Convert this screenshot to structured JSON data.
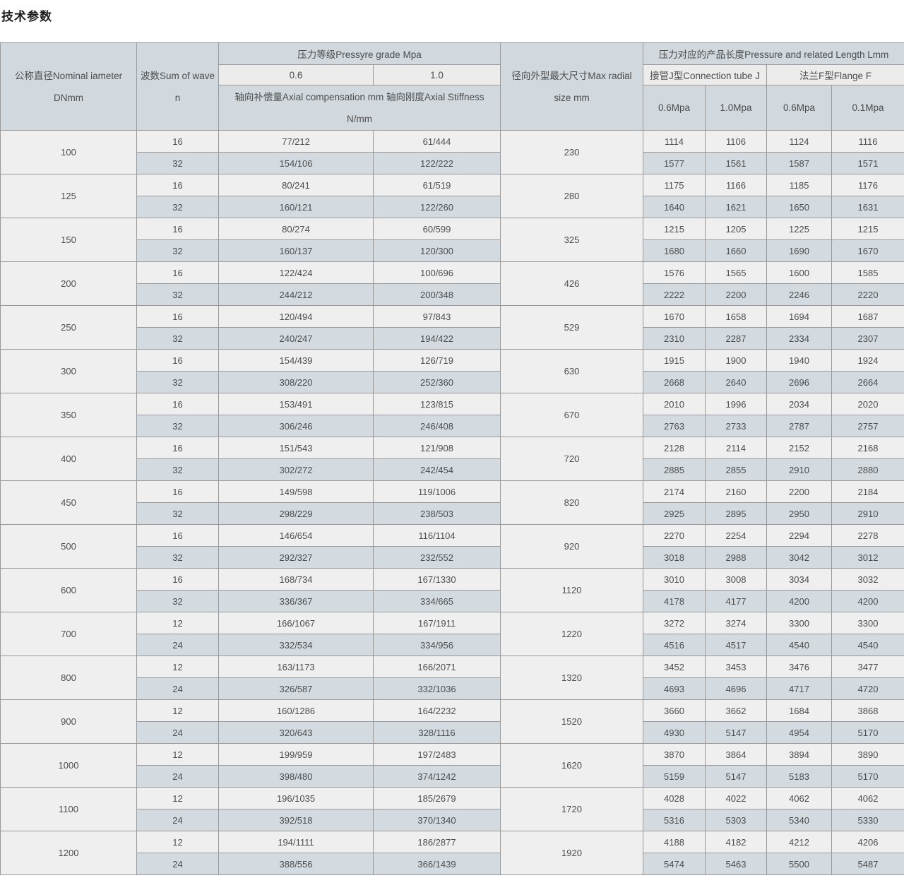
{
  "title": "技术参数",
  "colors": {
    "header_bg": "#d1d8de",
    "subheader_bg": "#ececec",
    "row_light": "#efefef",
    "row_blue": "#d3dbe1",
    "border": "#999999",
    "text": "#4d4d4d"
  },
  "table": {
    "header": {
      "diameter_line1": "公称直径Nominal iameter",
      "diameter_line2": "DNmm",
      "waves_line1": "波数Sum of wave",
      "waves_line2": "n",
      "pressure_group": "压力等级Pressyre grade Mpa",
      "pressure_06": "0.6",
      "pressure_10": "1.0",
      "axial_line1": "轴向补偿量Axial compensation mm 轴向刚度Axial Stiffness",
      "axial_line2": "N/mm",
      "radial_line1": "径向外型最大尺寸Max radial",
      "radial_line2": "size mm",
      "length_group": "压力对应的产品长度Pressure and related Length Lmm",
      "connection_tube": "接管J型Connection tube J",
      "flange": "法兰F型Flange F",
      "len_cols": [
        "0.6Mpa",
        "1.0Mpa",
        "0.6Mpa",
        "0.1Mpa"
      ]
    },
    "rows": [
      {
        "dn": "100",
        "radial": "230",
        "sub": [
          {
            "waves": "16",
            "comp06": "77/212",
            "comp10": "61/444",
            "len": [
              "1114",
              "1106",
              "1124",
              "1116"
            ]
          },
          {
            "waves": "32",
            "comp06": "154/106",
            "comp10": "122/222",
            "len": [
              "1577",
              "1561",
              "1587",
              "1571"
            ]
          }
        ]
      },
      {
        "dn": "125",
        "radial": "280",
        "sub": [
          {
            "waves": "16",
            "comp06": "80/241",
            "comp10": "61/519",
            "len": [
              "1175",
              "1166",
              "1185",
              "1176"
            ]
          },
          {
            "waves": "32",
            "comp06": "160/121",
            "comp10": "122/260",
            "len": [
              "1640",
              "1621",
              "1650",
              "1631"
            ]
          }
        ]
      },
      {
        "dn": "150",
        "radial": "325",
        "sub": [
          {
            "waves": "16",
            "comp06": "80/274",
            "comp10": "60/599",
            "len": [
              "1215",
              "1205",
              "1225",
              "1215"
            ]
          },
          {
            "waves": "32",
            "comp06": "160/137",
            "comp10": "120/300",
            "len": [
              "1680",
              "1660",
              "1690",
              "1670"
            ]
          }
        ]
      },
      {
        "dn": "200",
        "radial": "426",
        "sub": [
          {
            "waves": "16",
            "comp06": "122/424",
            "comp10": "100/696",
            "len": [
              "1576",
              "1565",
              "1600",
              "1585"
            ]
          },
          {
            "waves": "32",
            "comp06": "244/212",
            "comp10": "200/348",
            "len": [
              "2222",
              "2200",
              "2246",
              "2220"
            ]
          }
        ]
      },
      {
        "dn": "250",
        "radial": "529",
        "sub": [
          {
            "waves": "16",
            "comp06": "120/494",
            "comp10": "97/843",
            "len": [
              "1670",
              "1658",
              "1694",
              "1687"
            ]
          },
          {
            "waves": "32",
            "comp06": "240/247",
            "comp10": "194/422",
            "len": [
              "2310",
              "2287",
              "2334",
              "2307"
            ]
          }
        ]
      },
      {
        "dn": "300",
        "radial": "630",
        "sub": [
          {
            "waves": "16",
            "comp06": "154/439",
            "comp10": "126/719",
            "len": [
              "1915",
              "1900",
              "1940",
              "1924"
            ]
          },
          {
            "waves": "32",
            "comp06": "308/220",
            "comp10": "252/360",
            "len": [
              "2668",
              "2640",
              "2696",
              "2664"
            ]
          }
        ]
      },
      {
        "dn": "350",
        "radial": "670",
        "sub": [
          {
            "waves": "16",
            "comp06": "153/491",
            "comp10": "123/815",
            "len": [
              "2010",
              "1996",
              "2034",
              "2020"
            ]
          },
          {
            "waves": "32",
            "comp06": "306/246",
            "comp10": "246/408",
            "len": [
              "2763",
              "2733",
              "2787",
              "2757"
            ]
          }
        ]
      },
      {
        "dn": "400",
        "radial": "720",
        "sub": [
          {
            "waves": "16",
            "comp06": "151/543",
            "comp10": "121/908",
            "len": [
              "2128",
              "2114",
              "2152",
              "2168"
            ]
          },
          {
            "waves": "32",
            "comp06": "302/272",
            "comp10": "242/454",
            "len": [
              "2885",
              "2855",
              "2910",
              "2880"
            ]
          }
        ]
      },
      {
        "dn": "450",
        "radial": "820",
        "sub": [
          {
            "waves": "16",
            "comp06": "149/598",
            "comp10": "119/1006",
            "len": [
              "2174",
              "2160",
              "2200",
              "2184"
            ]
          },
          {
            "waves": "32",
            "comp06": "298/229",
            "comp10": "238/503",
            "len": [
              "2925",
              "2895",
              "2950",
              "2910"
            ]
          }
        ]
      },
      {
        "dn": "500",
        "radial": "920",
        "sub": [
          {
            "waves": "16",
            "comp06": "146/654",
            "comp10": "116/1104",
            "len": [
              "2270",
              "2254",
              "2294",
              "2278"
            ]
          },
          {
            "waves": "32",
            "comp06": "292/327",
            "comp10": "232/552",
            "len": [
              "3018",
              "2988",
              "3042",
              "3012"
            ]
          }
        ]
      },
      {
        "dn": "600",
        "radial": "1120",
        "sub": [
          {
            "waves": "16",
            "comp06": "168/734",
            "comp10": "167/1330",
            "len": [
              "3010",
              "3008",
              "3034",
              "3032"
            ]
          },
          {
            "waves": "32",
            "comp06": "336/367",
            "comp10": "334/665",
            "len": [
              "4178",
              "4177",
              "4200",
              "4200"
            ]
          }
        ]
      },
      {
        "dn": "700",
        "radial": "1220",
        "sub": [
          {
            "waves": "12",
            "comp06": "166/1067",
            "comp10": "167/1911",
            "len": [
              "3272",
              "3274",
              "3300",
              "3300"
            ]
          },
          {
            "waves": "24",
            "comp06": "332/534",
            "comp10": "334/956",
            "len": [
              "4516",
              "4517",
              "4540",
              "4540"
            ]
          }
        ]
      },
      {
        "dn": "800",
        "radial": "1320",
        "sub": [
          {
            "waves": "12",
            "comp06": "163/1173",
            "comp10": "166/2071",
            "len": [
              "3452",
              "3453",
              "3476",
              "3477"
            ]
          },
          {
            "waves": "24",
            "comp06": "326/587",
            "comp10": "332/1036",
            "len": [
              "4693",
              "4696",
              "4717",
              "4720"
            ]
          }
        ]
      },
      {
        "dn": "900",
        "radial": "1520",
        "sub": [
          {
            "waves": "12",
            "comp06": "160/1286",
            "comp10": "164/2232",
            "len": [
              "3660",
              "3662",
              "1684",
              "3868"
            ]
          },
          {
            "waves": "24",
            "comp06": "320/643",
            "comp10": "328/1116",
            "len": [
              "4930",
              "5147",
              "4954",
              "5170"
            ]
          }
        ]
      },
      {
        "dn": "1000",
        "radial": "1620",
        "sub": [
          {
            "waves": "12",
            "comp06": "199/959",
            "comp10": "197/2483",
            "len": [
              "3870",
              "3864",
              "3894",
              "3890"
            ]
          },
          {
            "waves": "24",
            "comp06": "398/480",
            "comp10": "374/1242",
            "len": [
              "5159",
              "5147",
              "5183",
              "5170"
            ]
          }
        ]
      },
      {
        "dn": "1100",
        "radial": "1720",
        "sub": [
          {
            "waves": "12",
            "comp06": "196/1035",
            "comp10": "185/2679",
            "len": [
              "4028",
              "4022",
              "4062",
              "4062"
            ]
          },
          {
            "waves": "24",
            "comp06": "392/518",
            "comp10": "370/1340",
            "len": [
              "5316",
              "5303",
              "5340",
              "5330"
            ]
          }
        ]
      },
      {
        "dn": "1200",
        "radial": "1920",
        "sub": [
          {
            "waves": "12",
            "comp06": "194/1111",
            "comp10": "186/2877",
            "len": [
              "4188",
              "4182",
              "4212",
              "4206"
            ]
          },
          {
            "waves": "24",
            "comp06": "388/556",
            "comp10": "366/1439",
            "len": [
              "5474",
              "5463",
              "5500",
              "5487"
            ]
          }
        ]
      }
    ]
  }
}
